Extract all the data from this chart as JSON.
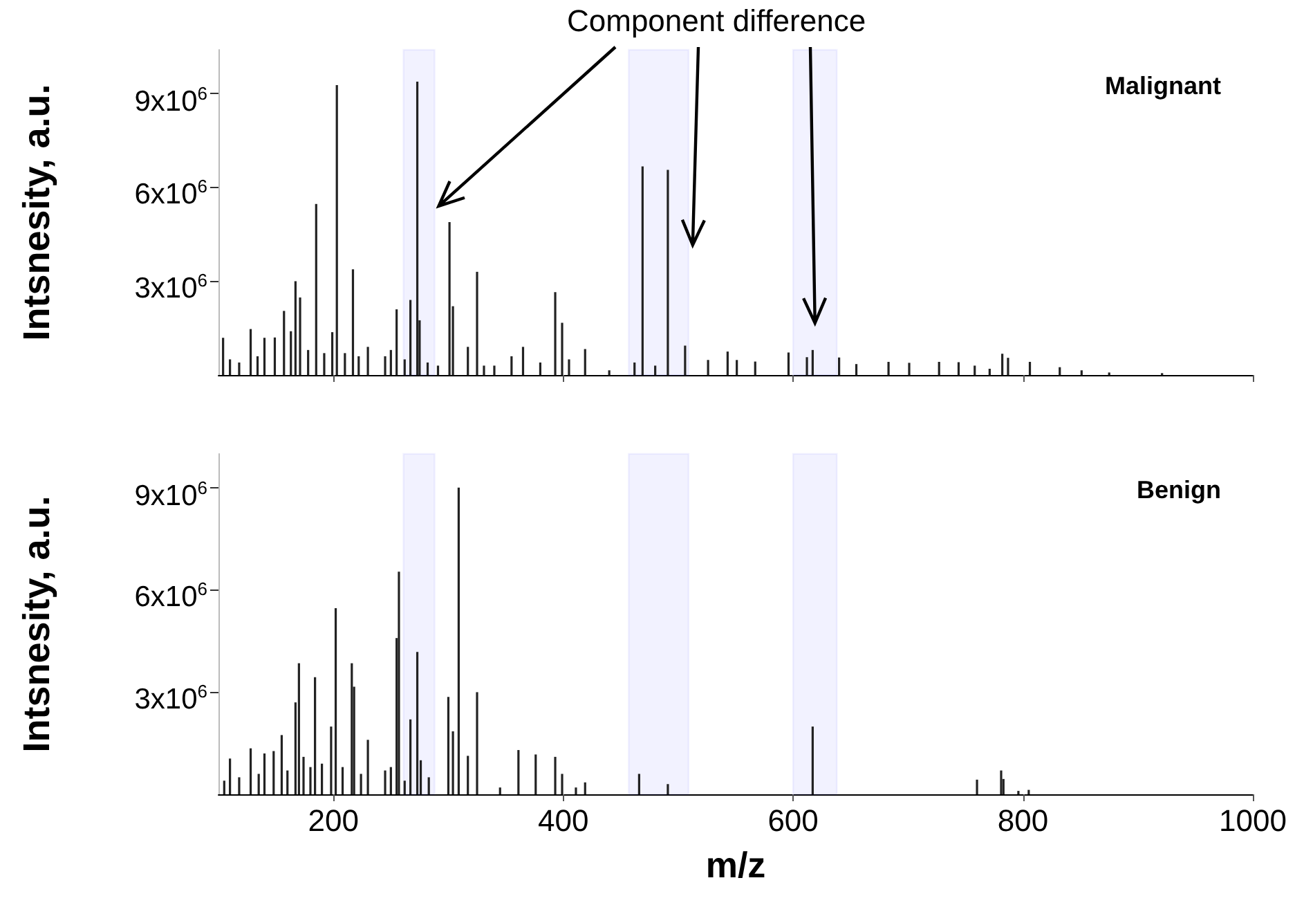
{
  "chart_data": [
    {
      "type": "bar",
      "title": "Malignant",
      "ylabel": "Intsnesity, a.u.",
      "annotations": [
        {
          "text": "Component difference",
          "x": 288,
          "y": 5400000
        }
      ],
      "color": "#222222",
      "tick_labels": "y",
      "x": [
        104,
        110,
        118,
        128,
        134,
        140,
        149,
        157,
        163,
        167,
        171,
        178,
        185,
        192,
        199,
        203,
        210,
        217,
        222,
        230,
        235,
        239,
        245,
        250,
        255,
        257,
        262,
        267,
        273,
        275,
        282,
        291,
        301,
        304,
        310,
        317,
        325,
        331,
        340,
        355,
        365,
        380,
        393,
        399,
        405,
        419,
        440,
        462,
        469,
        480,
        491,
        506,
        526,
        543,
        551,
        567,
        596,
        612,
        617,
        640,
        655,
        683,
        701,
        727,
        744,
        758,
        771,
        782,
        787,
        806,
        832,
        851,
        875,
        921
      ],
      "values": [
        1190000,
        500000,
        400000,
        1470000,
        600000,
        1190000,
        1200000,
        2050000,
        1400000,
        3000000,
        2480000,
        800000,
        5470000,
        700000,
        1370000,
        9270000,
        700000,
        3380000,
        600000,
        900000,
        null,
        null,
        600000,
        800000,
        2100000,
        null,
        500000,
        2400000,
        9380000,
        1750000,
        400000,
        300000,
        4890000,
        2200000,
        null,
        900000,
        3300000,
        300000,
        300000,
        600000,
        900000,
        400000,
        2650000,
        1670000,
        500000,
        830000,
        150000,
        400000,
        6670000,
        300000,
        6560000,
        940000,
        480000,
        750000,
        480000,
        430000,
        720000,
        570000,
        800000,
        560000,
        350000,
        420000,
        390000,
        420000,
        410000,
        300000,
        200000,
        680000,
        550000,
        420000,
        250000,
        150000,
        80000,
        60000
      ],
      "xlim": [
        100,
        1000
      ],
      "xticks": [
        200,
        400,
        600,
        800,
        1000
      ],
      "ylim": [
        0,
        10400000
      ],
      "yticks": [
        {
          "value": 3000000,
          "label": "3x10$^{6}$"
        },
        {
          "value": 6000000,
          "label": "6x10$^{6}$"
        },
        {
          "value": 9000000,
          "label": "9x10$^{6}$"
        }
      ],
      "bands": [
        {
          "axis": "x",
          "from": 261,
          "to": 288,
          "color": "#4040ff"
        },
        {
          "axis": "x",
          "from": 457,
          "to": 509,
          "color": "#4040ff"
        },
        {
          "axis": "x",
          "from": 600,
          "to": 638,
          "color": "#4040ff"
        }
      ]
    },
    {
      "type": "bar",
      "title": "Benign",
      "xlabel": "m/z",
      "ylabel": "Intsnesity, a.u.",
      "color": "#222222",
      "x": [
        105,
        110,
        118,
        128,
        135,
        140,
        148,
        155,
        160,
        167,
        170,
        174,
        180,
        184,
        190,
        198,
        202,
        208,
        216,
        218,
        224,
        230,
        235,
        239,
        245,
        250,
        255,
        257,
        262,
        267,
        273,
        276,
        283,
        300,
        304,
        309,
        317,
        325,
        345,
        361,
        376,
        393,
        399,
        411,
        419,
        466,
        491,
        617,
        760,
        781,
        783,
        796,
        805
      ],
      "values": [
        400000,
        1050000,
        500000,
        1350000,
        600000,
        1200000,
        1270000,
        1740000,
        700000,
        2700000,
        3850000,
        1100000,
        800000,
        3440000,
        900000,
        1990000,
        5470000,
        800000,
        3850000,
        3160000,
        600000,
        1600000,
        null,
        null,
        700000,
        800000,
        4590000,
        6540000,
        400000,
        2200000,
        4180000,
        1000000,
        500000,
        2860000,
        1850000,
        9010000,
        1130000,
        3000000,
        200000,
        1300000,
        1170000,
        1100000,
        600000,
        200000,
        350000,
        600000,
        300000,
        1990000,
        430000,
        700000,
        450000,
        100000,
        130000
      ],
      "xlim": [
        100,
        1000
      ],
      "xticks": [
        200,
        400,
        600,
        800,
        1000
      ],
      "ylim": [
        0,
        10000000
      ],
      "yticks": [
        {
          "value": 3000000,
          "label": "3x10$^{6}$"
        },
        {
          "value": 6000000,
          "label": "6x10$^{6}$"
        },
        {
          "value": 9000000,
          "label": "9x10$^{6}$"
        }
      ],
      "bands": [
        {
          "axis": "x",
          "from": 261,
          "to": 288,
          "color": "#4040ff"
        },
        {
          "axis": "x",
          "from": 457,
          "to": 509,
          "color": "#4040ff"
        },
        {
          "axis": "x",
          "from": 600,
          "to": 638,
          "color": "#4040ff"
        }
      ]
    }
  ]
}
